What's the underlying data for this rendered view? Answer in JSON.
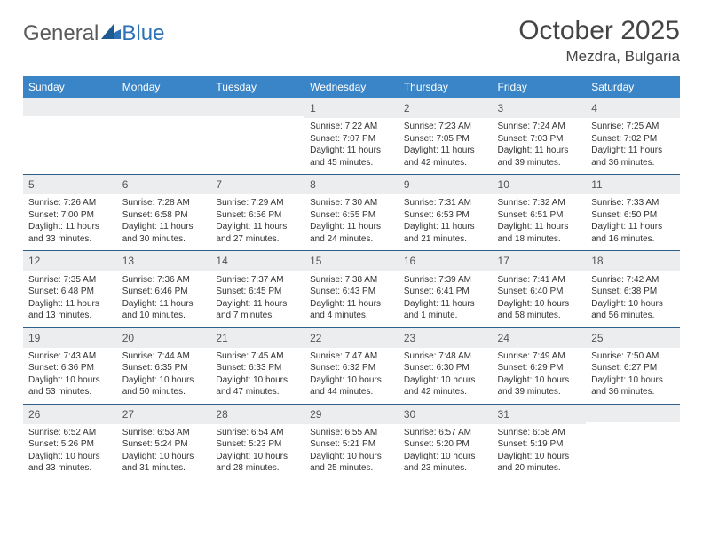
{
  "brand": {
    "text1": "General",
    "text2": "Blue"
  },
  "title": "October 2025",
  "location": "Mezdra, Bulgaria",
  "colors": {
    "header_bg": "#3a85c7",
    "header_text": "#ffffff",
    "daynum_bg": "#ebedef",
    "border_top": "#2f5f8a",
    "body_text": "#333333",
    "logo_gray": "#5a5a5a",
    "logo_blue": "#2a72b5"
  },
  "weekdays": [
    "Sunday",
    "Monday",
    "Tuesday",
    "Wednesday",
    "Thursday",
    "Friday",
    "Saturday"
  ],
  "weeks": [
    [
      null,
      null,
      null,
      {
        "d": "1",
        "sr": "7:22 AM",
        "ss": "7:07 PM",
        "dl": "11 hours and 45 minutes."
      },
      {
        "d": "2",
        "sr": "7:23 AM",
        "ss": "7:05 PM",
        "dl": "11 hours and 42 minutes."
      },
      {
        "d": "3",
        "sr": "7:24 AM",
        "ss": "7:03 PM",
        "dl": "11 hours and 39 minutes."
      },
      {
        "d": "4",
        "sr": "7:25 AM",
        "ss": "7:02 PM",
        "dl": "11 hours and 36 minutes."
      }
    ],
    [
      {
        "d": "5",
        "sr": "7:26 AM",
        "ss": "7:00 PM",
        "dl": "11 hours and 33 minutes."
      },
      {
        "d": "6",
        "sr": "7:28 AM",
        "ss": "6:58 PM",
        "dl": "11 hours and 30 minutes."
      },
      {
        "d": "7",
        "sr": "7:29 AM",
        "ss": "6:56 PM",
        "dl": "11 hours and 27 minutes."
      },
      {
        "d": "8",
        "sr": "7:30 AM",
        "ss": "6:55 PM",
        "dl": "11 hours and 24 minutes."
      },
      {
        "d": "9",
        "sr": "7:31 AM",
        "ss": "6:53 PM",
        "dl": "11 hours and 21 minutes."
      },
      {
        "d": "10",
        "sr": "7:32 AM",
        "ss": "6:51 PM",
        "dl": "11 hours and 18 minutes."
      },
      {
        "d": "11",
        "sr": "7:33 AM",
        "ss": "6:50 PM",
        "dl": "11 hours and 16 minutes."
      }
    ],
    [
      {
        "d": "12",
        "sr": "7:35 AM",
        "ss": "6:48 PM",
        "dl": "11 hours and 13 minutes."
      },
      {
        "d": "13",
        "sr": "7:36 AM",
        "ss": "6:46 PM",
        "dl": "11 hours and 10 minutes."
      },
      {
        "d": "14",
        "sr": "7:37 AM",
        "ss": "6:45 PM",
        "dl": "11 hours and 7 minutes."
      },
      {
        "d": "15",
        "sr": "7:38 AM",
        "ss": "6:43 PM",
        "dl": "11 hours and 4 minutes."
      },
      {
        "d": "16",
        "sr": "7:39 AM",
        "ss": "6:41 PM",
        "dl": "11 hours and 1 minute."
      },
      {
        "d": "17",
        "sr": "7:41 AM",
        "ss": "6:40 PM",
        "dl": "10 hours and 58 minutes."
      },
      {
        "d": "18",
        "sr": "7:42 AM",
        "ss": "6:38 PM",
        "dl": "10 hours and 56 minutes."
      }
    ],
    [
      {
        "d": "19",
        "sr": "7:43 AM",
        "ss": "6:36 PM",
        "dl": "10 hours and 53 minutes."
      },
      {
        "d": "20",
        "sr": "7:44 AM",
        "ss": "6:35 PM",
        "dl": "10 hours and 50 minutes."
      },
      {
        "d": "21",
        "sr": "7:45 AM",
        "ss": "6:33 PM",
        "dl": "10 hours and 47 minutes."
      },
      {
        "d": "22",
        "sr": "7:47 AM",
        "ss": "6:32 PM",
        "dl": "10 hours and 44 minutes."
      },
      {
        "d": "23",
        "sr": "7:48 AM",
        "ss": "6:30 PM",
        "dl": "10 hours and 42 minutes."
      },
      {
        "d": "24",
        "sr": "7:49 AM",
        "ss": "6:29 PM",
        "dl": "10 hours and 39 minutes."
      },
      {
        "d": "25",
        "sr": "7:50 AM",
        "ss": "6:27 PM",
        "dl": "10 hours and 36 minutes."
      }
    ],
    [
      {
        "d": "26",
        "sr": "6:52 AM",
        "ss": "5:26 PM",
        "dl": "10 hours and 33 minutes."
      },
      {
        "d": "27",
        "sr": "6:53 AM",
        "ss": "5:24 PM",
        "dl": "10 hours and 31 minutes."
      },
      {
        "d": "28",
        "sr": "6:54 AM",
        "ss": "5:23 PM",
        "dl": "10 hours and 28 minutes."
      },
      {
        "d": "29",
        "sr": "6:55 AM",
        "ss": "5:21 PM",
        "dl": "10 hours and 25 minutes."
      },
      {
        "d": "30",
        "sr": "6:57 AM",
        "ss": "5:20 PM",
        "dl": "10 hours and 23 minutes."
      },
      {
        "d": "31",
        "sr": "6:58 AM",
        "ss": "5:19 PM",
        "dl": "10 hours and 20 minutes."
      },
      null
    ]
  ]
}
